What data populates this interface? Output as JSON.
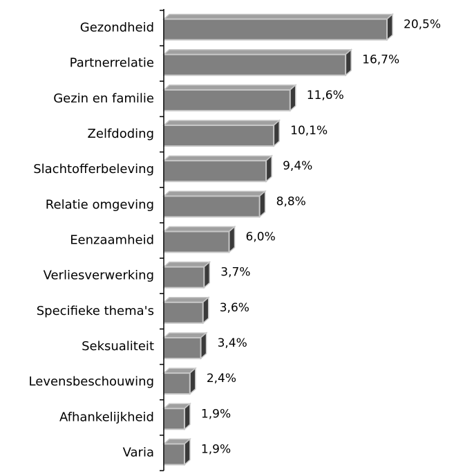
{
  "chart_data": {
    "type": "bar",
    "orientation": "horizontal",
    "categories": [
      "Gezondheid",
      "Partnerrelatie",
      "Gezin en familie",
      "Zelfdoding",
      "Slachtofferbeleving",
      "Relatie omgeving",
      "Eenzaamheid",
      "Verliesverwerking",
      "Specifieke thema's",
      "Seksualiteit",
      "Levensbeschouwing",
      "Afhankelijkheid",
      "Varia"
    ],
    "values": [
      20.5,
      16.7,
      11.6,
      10.1,
      9.4,
      8.8,
      6.0,
      3.7,
      3.6,
      3.4,
      2.4,
      1.9,
      1.9
    ],
    "value_labels": [
      "20,5%",
      "16,7%",
      "11,6%",
      "10,1%",
      "9,4%",
      "8,8%",
      "6,0%",
      "3,7%",
      "3,6%",
      "3,4%",
      "2,4%",
      "1,9%",
      "1,9%"
    ],
    "color": "#808080"
  }
}
